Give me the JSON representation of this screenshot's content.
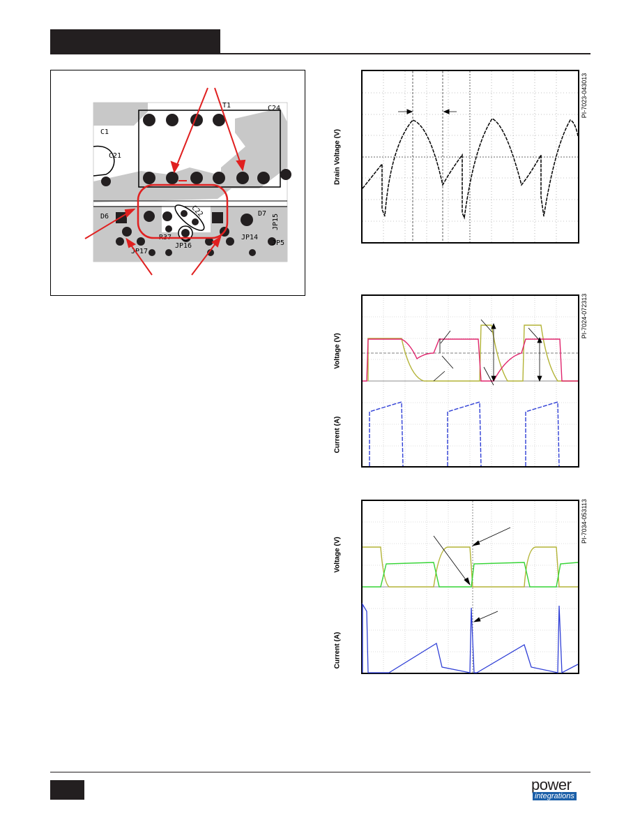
{
  "pcb": {
    "labels": [
      "C1",
      "C21",
      "T1",
      "C24",
      "D6",
      "D7",
      "C22",
      "R37",
      "JP15",
      "JP17",
      "JP16",
      "JP14",
      "JP5"
    ]
  },
  "plots": [
    {
      "ylabel": "Drain Voltage (V)",
      "id": "PI-7023-043013"
    },
    {
      "ylabel_top": "Voltage (V)",
      "ylabel_bottom": "Current (A)",
      "id": "PI-7024-072313"
    },
    {
      "ylabel_top": "Voltage (V)",
      "ylabel_bottom": "Current (A)",
      "id": "PI-7034-053113"
    }
  ],
  "colors": {
    "trace_yellow": "#b3b336",
    "trace_pink": "#e0256d",
    "trace_blue": "#2f3fd6",
    "trace_green": "#33d433",
    "arrow_red": "#e02020",
    "copper": "#c8c8c8"
  },
  "logo": {
    "line1": "power",
    "line2": "integrations"
  }
}
